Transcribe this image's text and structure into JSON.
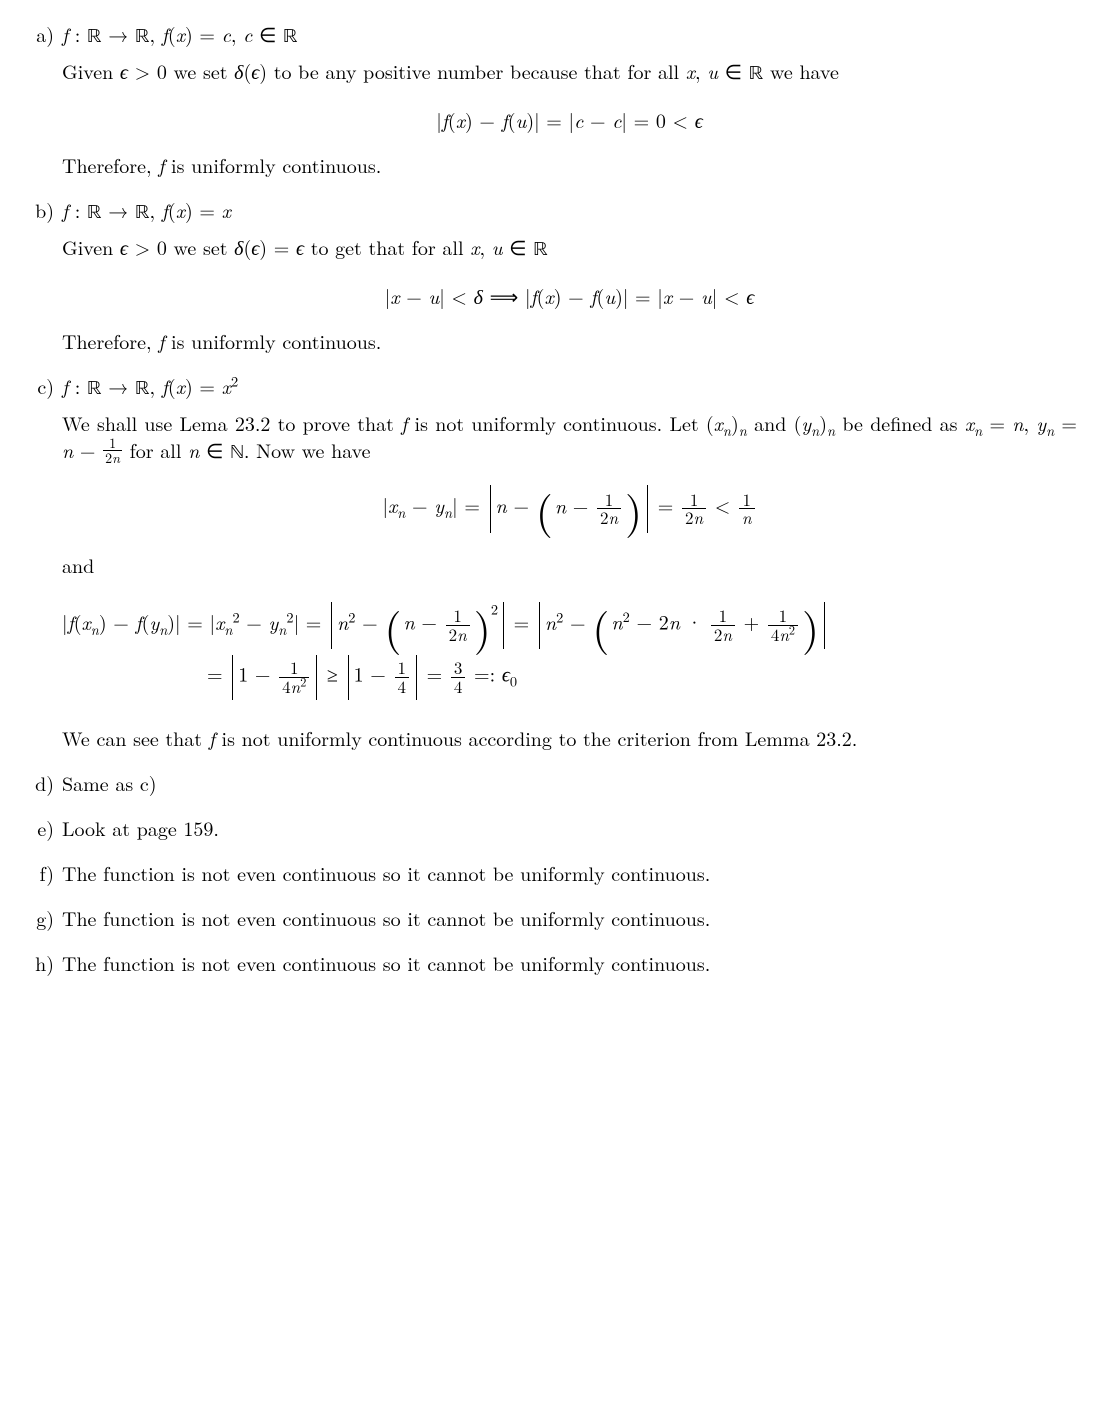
{
  "items": [
    {
      "label": "a)",
      "defn_html": "<span class='i'>f</span> : <span class='bbR'>ℝ</span> → <span class='bbR'>ℝ</span>, <span class='i'>f</span>(<span class='i'>x</span>) = <span class='i'>c</span>, <span class='i'>c</span> ∈ <span class='bbR'>ℝ</span>",
      "intro_html": "Given <span class='i'>ϵ</span> &gt; 0 we set <span class='i'>δ</span>(<span class='i'>ϵ</span>) to be any positive number because that for all <span class='i'>x</span>, <span class='i'>u</span> ∈ <span class='bbR'>ℝ</span> we have",
      "display_html": "|<span class='i'>f</span>(<span class='i'>x</span>) − <span class='i'>f</span>(<span class='i'>u</span>)| = |<span class='i'>c</span> − <span class='i'>c</span>| = 0 &lt; <span class='i'>ϵ</span>",
      "conclusion_html": "Therefore, <span class='i'>f</span> is uniformly continuous."
    },
    {
      "label": "b)",
      "defn_html": "<span class='i'>f</span> : <span class='bbR'>ℝ</span> → <span class='bbR'>ℝ</span>, <span class='i'>f</span>(<span class='i'>x</span>) = <span class='i'>x</span>",
      "intro_html": "Given <span class='i'>ϵ</span> &gt; 0 we set <span class='i'>δ</span>(<span class='i'>ϵ</span>) = <span class='i'>ϵ</span> to get that for all <span class='i'>x</span>, <span class='i'>u</span> ∈ <span class='bbR'>ℝ</span>",
      "display_html": "|<span class='i'>x</span> − <span class='i'>u</span>| &lt; <span class='i'>δ</span> ⟹ |<span class='i'>f</span>(<span class='i'>x</span>) − <span class='i'>f</span>(<span class='i'>u</span>)| = |<span class='i'>x</span> − <span class='i'>u</span>| &lt; <span class='i'>ϵ</span>",
      "conclusion_html": "Therefore, <span class='i'>f</span> is uniformly continuous."
    },
    {
      "label": "c)",
      "defn_html": "<span class='i'>f</span> : <span class='bbR'>ℝ</span> → <span class='bbR'>ℝ</span>, <span class='i'>f</span>(<span class='i'>x</span>) = <span class='i'>x</span><sup>2</sup>",
      "intro_html": "We shall use Lema 23.2 to prove that <span class='i'>f</span> is not uniformly continuous. Let (<span class='i'>x</span><sub><span class='i'>n</span></sub>)<sub><span class='i'>n</span></sub> and (<span class='i'>y</span><sub><span class='i'>n</span></sub>)<sub><span class='i'>n</span></sub> be defined as <span class='i'>x</span><sub><span class='i'>n</span></sub> = <span class='i'>n</span>, <span class='i'>y</span><sub><span class='i'>n</span></sub> = <span class='i'>n</span> − <span class='sfrac'><span class='num'>1</span><span class='den'>2<span class='i'>n</span></span></span> for all <span class='i'>n</span> ∈ <span class='bbR'>ℕ</span>. Now we have",
      "display1_html": "|<span class='i'>x</span><sub><span class='i'>n</span></sub> − <span class='i'>y</span><sub><span class='i'>n</span></sub>| = <span class='bigabs'><span class='bar'></span><span class='inner'><span class='i'>n</span> − <span class='bigparen'><span class='paren'>(</span><span class='inner'><span class='i'>n</span> − <span class='frac'><span class='num'>1</span><span class='den'>2<span class='i'>n</span></span></span></span><span class='paren'>)</span></span></span><span class='bar'></span></span> = <span class='frac'><span class='num'>1</span><span class='den'>2<span class='i'>n</span></span></span> &lt; <span class='frac'><span class='num'>1</span><span class='den'><span class='i'>n</span></span></span>",
      "and_text": "and",
      "display2_row1_html": "<span class='nowrap'>|<span class='i'>f</span>(<span class='i'>x</span><sub><span class='i'>n</span></sub>) − <span class='i'>f</span>(<span class='i'>y</span><sub><span class='i'>n</span></sub>)| = |<span class='i'>x</span><sub><span class='i'>n</span></sub><sup>2</sup> − <span class='i'>y</span><sub><span class='i'>n</span></sub><sup>2</sup>| = <span class='bigabs'><span class='bar'></span><span class='inner'><span class='i'>n</span><sup>2</sup> − <span class='bigparen'><span class='paren'>(</span><span class='inner'><span class='i'>n</span> − <span class='frac'><span class='num'>1</span><span class='den'>2<span class='i'>n</span></span></span></span><span class='paren'>)</span></span><sup style='vertical-align:1.1em'>2</sup></span><span class='bar'></span></span> = <span class='bigabs'><span class='bar'></span><span class='inner'><span class='i'>n</span><sup>2</sup> − <span class='bigparen'><span class='paren'>(</span><span class='inner'><span class='i'>n</span><sup>2</sup> − 2<span class='i'>n</span> · <span class='frac'><span class='num'>1</span><span class='den'>2<span class='i'>n</span></span></span> + <span class='frac'><span class='num'>1</span><span class='den'>4<span class='i'>n</span><sup>2</sup></span></span></span><span class='paren'>)</span></span></span><span class='bar'></span></span></span>",
      "display2_row2_html": "= <span class='bigabs'><span class='bar'></span><span class='inner'>1 − <span class='frac'><span class='num'>1</span><span class='den'>4<span class='i'>n</span><sup>2</sup></span></span></span><span class='bar'></span></span> ≥ <span class='bigabs'><span class='bar'></span><span class='inner'>1 − <span class='frac'><span class='num'>1</span><span class='den'>4</span></span></span><span class='bar'></span></span> = <span class='frac'><span class='num'>3</span><span class='den'>4</span></span> =: <span class='i'>ϵ</span><sub>0</sub>",
      "conclusion_html": "We can see that <span class='i'>f</span> is not uniformly continuous according to the criterion from Lemma 23.2."
    },
    {
      "label": "d)",
      "text": "Same as c)"
    },
    {
      "label": "e)",
      "text": "Look at page 159."
    },
    {
      "label": "f)",
      "text": "The function is not even continuous so it cannot be uniformly continuous."
    },
    {
      "label": "g)",
      "text": "The function is not even continuous so it cannot be uniformly continuous."
    },
    {
      "label": "h)",
      "text": "The function is not even continuous so it cannot be uniformly continuous."
    }
  ]
}
